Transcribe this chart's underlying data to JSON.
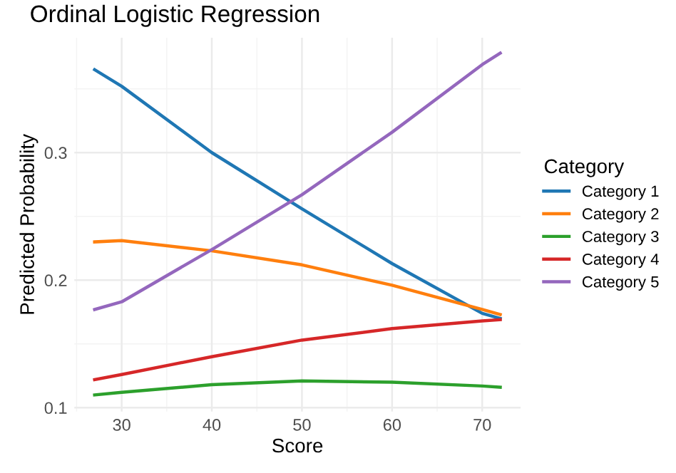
{
  "chart_data": {
    "type": "line",
    "title": "Ordinal Logistic Regression",
    "xlabel": "Score",
    "ylabel": "Predicted Probability",
    "legend_title": "Category",
    "x": [
      27,
      30,
      40,
      50,
      60,
      70,
      72
    ],
    "series": [
      {
        "name": "Category 1",
        "color": "#1f77b4",
        "values": [
          0.365,
          0.352,
          0.3,
          0.256,
          0.213,
          0.174,
          0.17
        ]
      },
      {
        "name": "Category 2",
        "color": "#ff7f0e",
        "values": [
          0.23,
          0.231,
          0.223,
          0.212,
          0.196,
          0.177,
          0.173
        ]
      },
      {
        "name": "Category 3",
        "color": "#2ca02c",
        "values": [
          0.11,
          0.112,
          0.118,
          0.121,
          0.12,
          0.117,
          0.116
        ]
      },
      {
        "name": "Category 4",
        "color": "#d62728",
        "values": [
          0.122,
          0.126,
          0.14,
          0.153,
          0.162,
          0.168,
          0.169
        ]
      },
      {
        "name": "Category 5",
        "color": "#9467bd",
        "values": [
          0.177,
          0.183,
          0.224,
          0.267,
          0.316,
          0.369,
          0.378
        ]
      }
    ],
    "xlim": [
      24.75,
      74.25
    ],
    "ylim": [
      0.097,
      0.39
    ],
    "xticks": [
      30,
      40,
      50,
      60,
      70
    ],
    "yticks": [
      0.1,
      0.2,
      0.3
    ],
    "grid": true,
    "legend": "right",
    "line_style": "solid",
    "marker": "none"
  }
}
